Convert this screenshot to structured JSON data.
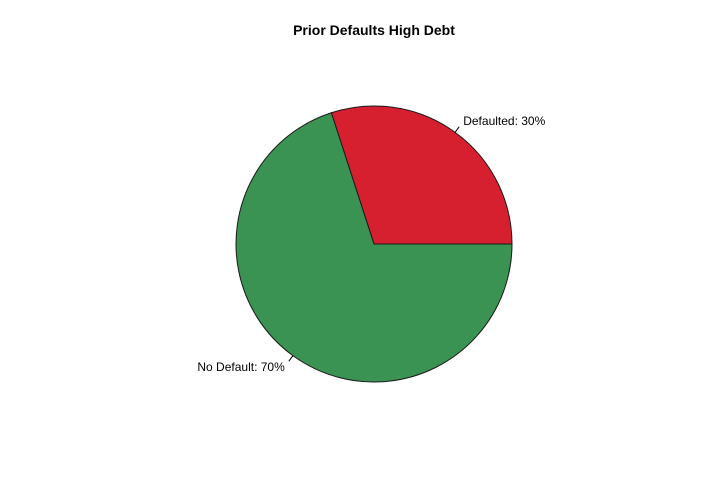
{
  "chart_data": {
    "type": "pie",
    "title": "Prior Defaults High Debt",
    "slices": [
      {
        "label": "Defaulted: 30%",
        "value": 30,
        "color": "#d62030"
      },
      {
        "label": "No Default: 70%",
        "value": 70,
        "color": "#3a9352"
      }
    ]
  }
}
